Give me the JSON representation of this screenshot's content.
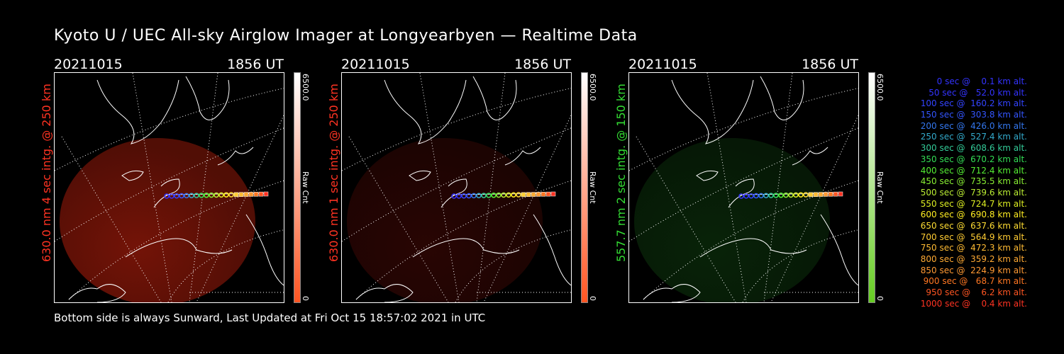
{
  "title": "Kyoto U / UEC All-sky Airglow Imager at Longyearbyen — Realtime Data",
  "panels": [
    {
      "date": "20211015",
      "time": "1856 UT",
      "side_label": "630.0 nm 4 sec intg. @ 250 km",
      "label_color": "#ff3322",
      "cbar_max": "6500.0",
      "cbar_min": "0",
      "cbar_label": "Raw Cnt",
      "cbar_color": "#ff5522",
      "glow_color": "#9a1a0a",
      "glow_opacity": 0.75
    },
    {
      "date": "20211015",
      "time": "1856 UT",
      "side_label": "630.0 nm 1 sec intg. @ 250 km",
      "label_color": "#ff3322",
      "cbar_max": "6500.0",
      "cbar_min": "0",
      "cbar_label": "Raw Cnt",
      "cbar_color": "#ff5522",
      "glow_color": "#4a0a06",
      "glow_opacity": 0.55
    },
    {
      "date": "20211015",
      "time": "1856 UT",
      "side_label": "557.7 nm 2 sec intg. @ 150 km",
      "label_color": "#33dd33",
      "cbar_max": "6500.0",
      "cbar_min": "0",
      "cbar_label": "Raw Cnt",
      "cbar_color": "#66cc22",
      "glow_color": "#0e3a0e",
      "glow_opacity": 0.6
    }
  ],
  "legend": [
    {
      "text": "   0 sec @    0.1 km alt.",
      "color": "#3333ff"
    },
    {
      "text": "  50 sec @   52.0 km alt.",
      "color": "#3333ff"
    },
    {
      "text": " 100 sec @  160.2 km alt.",
      "color": "#3344ff"
    },
    {
      "text": " 150 sec @  303.8 km alt.",
      "color": "#3355ff"
    },
    {
      "text": " 200 sec @  426.0 km alt.",
      "color": "#3377ee"
    },
    {
      "text": " 250 sec @  527.4 km alt.",
      "color": "#33aacc"
    },
    {
      "text": " 300 sec @  608.6 km alt.",
      "color": "#33cc99"
    },
    {
      "text": " 350 sec @  670.2 km alt.",
      "color": "#33dd55"
    },
    {
      "text": " 400 sec @  712.4 km alt.",
      "color": "#55ee33"
    },
    {
      "text": " 450 sec @  735.5 km alt.",
      "color": "#88ee33"
    },
    {
      "text": " 500 sec @  739.6 km alt.",
      "color": "#bbee33"
    },
    {
      "text": " 550 sec @  724.7 km alt.",
      "color": "#ddee22"
    },
    {
      "text": " 600 sec @  690.8 km alt.",
      "color": "#ffee22"
    },
    {
      "text": " 650 sec @  637.6 km alt.",
      "color": "#ffdd33"
    },
    {
      "text": " 700 sec @  564.9 km alt.",
      "color": "#ffcc33"
    },
    {
      "text": " 750 sec @  472.3 km alt.",
      "color": "#ffbb33"
    },
    {
      "text": " 800 sec @  359.2 km alt.",
      "color": "#ffaa33"
    },
    {
      "text": " 850 sec @  224.9 km alt.",
      "color": "#ff9933"
    },
    {
      "text": " 900 sec @   68.7 km alt.",
      "color": "#ff7722"
    },
    {
      "text": " 950 sec @    6.2 km alt.",
      "color": "#ff5522"
    },
    {
      "text": "1000 sec @    0.4 km alt.",
      "color": "#ff3322"
    }
  ],
  "footer": "Bottom side is always Sunward, Last Updated at Fri Oct 15 18:57:02 2021 in UTC"
}
